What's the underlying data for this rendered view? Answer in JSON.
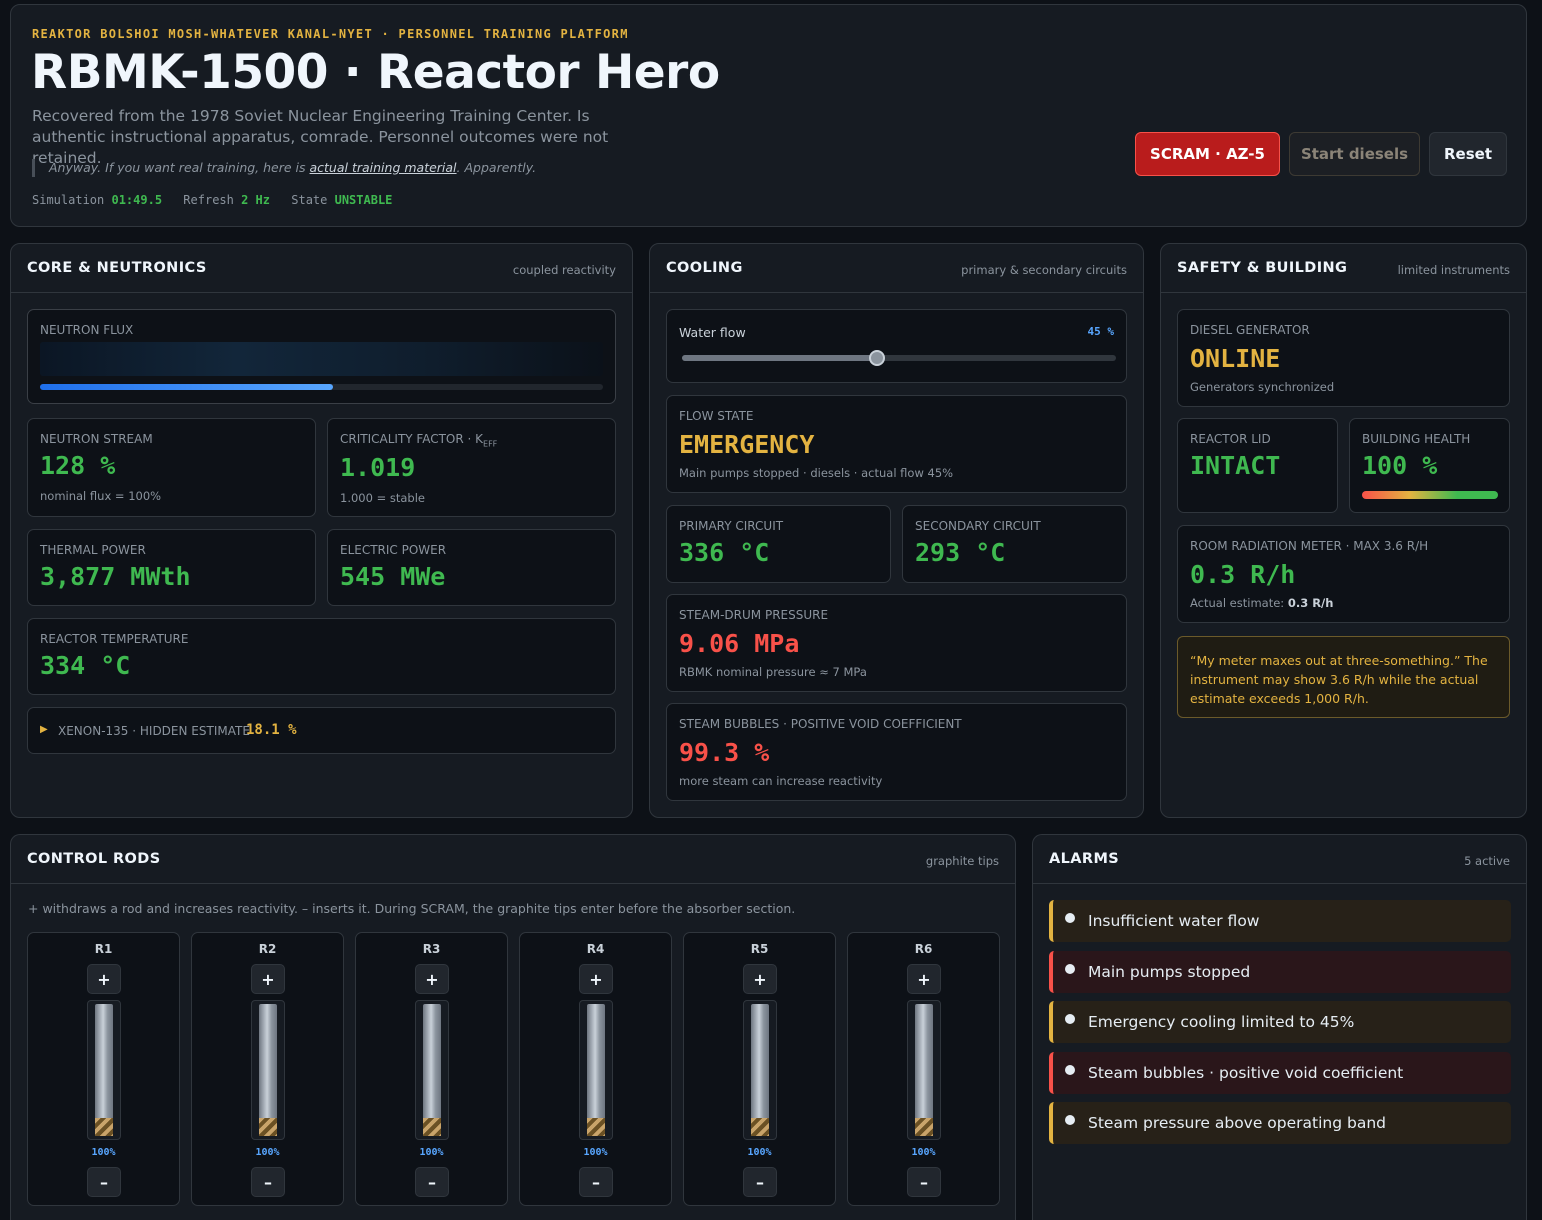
{
  "header": {
    "kicker": "REAKTOR BOLSHOI MOSH-WHATEVER KANAL-NYET · PERSONNEL TRAINING PLATFORM",
    "title": "RBMK-1500 · Reactor Hero",
    "subtitle": "Recovered from the 1978 Soviet Nuclear Engineering Training Center. Is authentic instructional apparatus, comrade. Personnel outcomes were not retained.",
    "quote_before": "Anyway. If you want real training, here is ",
    "quote_link": "actual training material",
    "quote_after": ". Apparently.",
    "sim_label": "Simulation",
    "sim_value": "01:49.5",
    "refresh_label": "Refresh",
    "refresh_value": "2 Hz",
    "state_label": "State",
    "state_value": "UNSTABLE",
    "buttons": {
      "scram": "SCRAM · AZ-5",
      "diesels": "Start diesels",
      "reset": "Reset"
    }
  },
  "core": {
    "title": "CORE & NEUTRONICS",
    "note": "coupled reactivity",
    "flux_label": "NEUTRON FLUX",
    "flux_fraction": 0.52,
    "stream_label": "NEUTRON STREAM",
    "stream_value": "128 %",
    "stream_sub": "nominal flux = 100%",
    "keff_label": "CRITICALITY FACTOR · K",
    "keff_sub_label": "EFF",
    "keff_value": "1.019",
    "keff_sub": "1.000 = stable",
    "thermal_label": "THERMAL POWER",
    "thermal_value": "3,877 MWth",
    "electric_label": "ELECTRIC POWER",
    "electric_value": "545 MWe",
    "temp_label": "REACTOR TEMPERATURE",
    "temp_value": "334 °C",
    "xenon_label": "XENON-135 · HIDDEN ESTIMATE",
    "xenon_value": "18.1 %"
  },
  "cooling": {
    "title": "COOLING",
    "note": "primary & secondary circuits",
    "flow_label": "Water flow",
    "flow_value": "45 %",
    "flow_fraction": 0.45,
    "state_label": "FLOW STATE",
    "state_value": "EMERGENCY",
    "state_sub": "Main pumps stopped · diesels · actual flow 45%",
    "primary_label": "PRIMARY CIRCUIT",
    "primary_value": "336 °C",
    "secondary_label": "SECONDARY CIRCUIT",
    "secondary_value": "293 °C",
    "pressure_label": "STEAM-DRUM PRESSURE",
    "pressure_value": "9.06 MPa",
    "pressure_sub": "RBMK nominal pressure ≈ 7 MPa",
    "bubbles_label": "STEAM BUBBLES · POSITIVE VOID COEFFICIENT",
    "bubbles_value": "99.3 %",
    "bubbles_sub": "more steam can increase reactivity"
  },
  "safety": {
    "title": "SAFETY & BUILDING",
    "note": "limited instruments",
    "diesel_label": "DIESEL GENERATOR",
    "diesel_value": "ONLINE",
    "diesel_sub": "Generators synchronized",
    "lid_label": "REACTOR LID",
    "lid_value": "INTACT",
    "health_label": "BUILDING HEALTH",
    "health_value": "100 %",
    "health_fraction": 1.0,
    "radiation_label": "ROOM RADIATION METER · MAX 3.6 R/H",
    "radiation_value": "0.3 R/h",
    "radiation_sub_label": "Actual estimate:",
    "radiation_sub_value": "0.3 R/h",
    "warning": "“My meter maxes out at three-something.” The instrument may show 3.6 R/h while the actual estimate exceeds 1,000 R/h."
  },
  "rods": {
    "title": "CONTROL RODS",
    "note": "graphite tips",
    "help": "+ withdraws a rod and increases reactivity. – inserts it. During SCRAM, the graphite tips enter before the absorber section.",
    "plus": "+",
    "minus": "–",
    "items": [
      {
        "name": "R1",
        "pct": "100%",
        "fraction": 1.0
      },
      {
        "name": "R2",
        "pct": "100%",
        "fraction": 1.0
      },
      {
        "name": "R3",
        "pct": "100%",
        "fraction": 1.0
      },
      {
        "name": "R4",
        "pct": "100%",
        "fraction": 1.0
      },
      {
        "name": "R5",
        "pct": "100%",
        "fraction": 1.0
      },
      {
        "name": "R6",
        "pct": "100%",
        "fraction": 1.0
      }
    ]
  },
  "alarms": {
    "title": "ALARMS",
    "note": "5 active",
    "items": [
      {
        "text": "Insufficient water flow",
        "level": "warn"
      },
      {
        "text": "Main pumps stopped",
        "level": "crit"
      },
      {
        "text": "Emergency cooling limited to 45%",
        "level": "warn"
      },
      {
        "text": "Steam bubbles · positive void coefficient",
        "level": "crit"
      },
      {
        "text": "Steam pressure above operating band",
        "level": "warn"
      }
    ]
  }
}
